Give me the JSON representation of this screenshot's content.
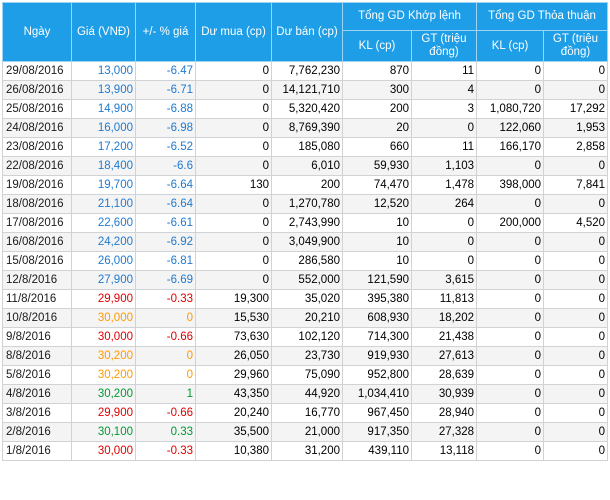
{
  "headers": {
    "date": "Ngày",
    "price": "Giá (VNĐ)",
    "change": "+/- % giá",
    "buy_surplus": "Dư mua (cp)",
    "sell_surplus": "Dư bán (cp)",
    "matched_group": "Tổng GD Khớp lệnh",
    "deal_group": "Tổng GD Thỏa thuận",
    "kl": "KL (cp)",
    "gt": "GT (triệu đồng)"
  },
  "colors": {
    "header_bg": "#1e9ee6",
    "down": "#1f7ad0",
    "red": "#e00000",
    "ref": "#ff9900",
    "up": "#009933"
  },
  "rows": [
    {
      "date": "29/08/2016",
      "price": "13,000",
      "change": "-6.47",
      "buy": "0",
      "sell": "7,762,230",
      "kl": "870",
      "gt": "11",
      "kl_tt": "0",
      "gt_tt": "0",
      "price_color": "blue",
      "change_color": "blue"
    },
    {
      "date": "26/08/2016",
      "price": "13,900",
      "change": "-6.71",
      "buy": "0",
      "sell": "14,121,710",
      "kl": "300",
      "gt": "4",
      "kl_tt": "0",
      "gt_tt": "0",
      "price_color": "blue",
      "change_color": "blue"
    },
    {
      "date": "25/08/2016",
      "price": "14,900",
      "change": "-6.88",
      "buy": "0",
      "sell": "5,320,420",
      "kl": "200",
      "gt": "3",
      "kl_tt": "1,080,720",
      "gt_tt": "17,292",
      "price_color": "blue",
      "change_color": "blue"
    },
    {
      "date": "24/08/2016",
      "price": "16,000",
      "change": "-6.98",
      "buy": "0",
      "sell": "8,769,390",
      "kl": "20",
      "gt": "0",
      "kl_tt": "122,060",
      "gt_tt": "1,953",
      "price_color": "blue",
      "change_color": "blue"
    },
    {
      "date": "23/08/2016",
      "price": "17,200",
      "change": "-6.52",
      "buy": "0",
      "sell": "185,080",
      "kl": "660",
      "gt": "11",
      "kl_tt": "166,170",
      "gt_tt": "2,858",
      "price_color": "blue",
      "change_color": "blue"
    },
    {
      "date": "22/08/2016",
      "price": "18,400",
      "change": "-6.6",
      "buy": "0",
      "sell": "6,010",
      "kl": "59,930",
      "gt": "1,103",
      "kl_tt": "0",
      "gt_tt": "0",
      "price_color": "blue",
      "change_color": "blue"
    },
    {
      "date": "19/08/2016",
      "price": "19,700",
      "change": "-6.64",
      "buy": "130",
      "sell": "200",
      "kl": "74,470",
      "gt": "1,478",
      "kl_tt": "398,000",
      "gt_tt": "7,841",
      "price_color": "blue",
      "change_color": "blue"
    },
    {
      "date": "18/08/2016",
      "price": "21,100",
      "change": "-6.64",
      "buy": "0",
      "sell": "1,270,780",
      "kl": "12,520",
      "gt": "264",
      "kl_tt": "0",
      "gt_tt": "0",
      "price_color": "blue",
      "change_color": "blue"
    },
    {
      "date": "17/08/2016",
      "price": "22,600",
      "change": "-6.61",
      "buy": "0",
      "sell": "2,743,990",
      "kl": "10",
      "gt": "0",
      "kl_tt": "200,000",
      "gt_tt": "4,520",
      "price_color": "blue",
      "change_color": "blue"
    },
    {
      "date": "16/08/2016",
      "price": "24,200",
      "change": "-6.92",
      "buy": "0",
      "sell": "3,049,900",
      "kl": "10",
      "gt": "0",
      "kl_tt": "0",
      "gt_tt": "0",
      "price_color": "blue",
      "change_color": "blue"
    },
    {
      "date": "15/08/2016",
      "price": "26,000",
      "change": "-6.81",
      "buy": "0",
      "sell": "286,580",
      "kl": "10",
      "gt": "0",
      "kl_tt": "0",
      "gt_tt": "0",
      "price_color": "blue",
      "change_color": "blue"
    },
    {
      "date": "12/8/2016",
      "price": "27,900",
      "change": "-6.69",
      "buy": "0",
      "sell": "552,000",
      "kl": "121,590",
      "gt": "3,615",
      "kl_tt": "0",
      "gt_tt": "0",
      "price_color": "blue",
      "change_color": "blue"
    },
    {
      "date": "11/8/2016",
      "price": "29,900",
      "change": "-0.33",
      "buy": "19,300",
      "sell": "35,020",
      "kl": "395,380",
      "gt": "11,813",
      "kl_tt": "0",
      "gt_tt": "0",
      "price_color": "red",
      "change_color": "red"
    },
    {
      "date": "10/8/2016",
      "price": "30,000",
      "change": "0",
      "buy": "15,530",
      "sell": "20,210",
      "kl": "608,930",
      "gt": "18,202",
      "kl_tt": "0",
      "gt_tt": "0",
      "price_color": "orange",
      "change_color": "orange"
    },
    {
      "date": "9/8/2016",
      "price": "30,000",
      "change": "-0.66",
      "buy": "73,630",
      "sell": "102,120",
      "kl": "714,300",
      "gt": "21,438",
      "kl_tt": "0",
      "gt_tt": "0",
      "price_color": "red",
      "change_color": "red"
    },
    {
      "date": "8/8/2016",
      "price": "30,200",
      "change": "0",
      "buy": "26,050",
      "sell": "23,730",
      "kl": "919,930",
      "gt": "27,613",
      "kl_tt": "0",
      "gt_tt": "0",
      "price_color": "orange",
      "change_color": "orange"
    },
    {
      "date": "5/8/2016",
      "price": "30,200",
      "change": "0",
      "buy": "29,960",
      "sell": "75,090",
      "kl": "952,800",
      "gt": "28,639",
      "kl_tt": "0",
      "gt_tt": "0",
      "price_color": "orange",
      "change_color": "orange"
    },
    {
      "date": "4/8/2016",
      "price": "30,200",
      "change": "1",
      "buy": "43,350",
      "sell": "44,920",
      "kl": "1,034,410",
      "gt": "30,939",
      "kl_tt": "0",
      "gt_tt": "0",
      "price_color": "green",
      "change_color": "green"
    },
    {
      "date": "3/8/2016",
      "price": "29,900",
      "change": "-0.66",
      "buy": "20,240",
      "sell": "16,770",
      "kl": "967,450",
      "gt": "28,940",
      "kl_tt": "0",
      "gt_tt": "0",
      "price_color": "red",
      "change_color": "red"
    },
    {
      "date": "2/8/2016",
      "price": "30,100",
      "change": "0.33",
      "buy": "35,500",
      "sell": "21,000",
      "kl": "917,350",
      "gt": "27,328",
      "kl_tt": "0",
      "gt_tt": "0",
      "price_color": "green",
      "change_color": "green"
    },
    {
      "date": "1/8/2016",
      "price": "30,000",
      "change": "-0.33",
      "buy": "10,380",
      "sell": "31,200",
      "kl": "439,110",
      "gt": "13,118",
      "kl_tt": "0",
      "gt_tt": "0",
      "price_color": "red",
      "change_color": "red"
    }
  ]
}
